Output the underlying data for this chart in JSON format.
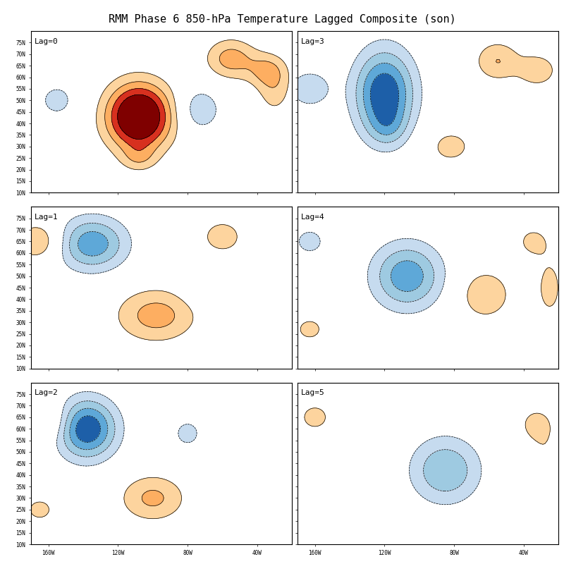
{
  "title": "RMM Phase 6 850-hPa Temperature Lagged Composite (son)",
  "title_fontsize": 11,
  "title_font": "monospace",
  "lag_labels": [
    "Lag=0",
    "Lag=1",
    "Lag=2",
    "Lag=3",
    "Lag=4",
    "Lag=5"
  ],
  "lon_range": [
    -170,
    -20
  ],
  "lat_range": [
    10,
    80
  ],
  "lon_ticks": [
    -160,
    -120,
    -80,
    -40
  ],
  "lat_ticks": [
    10,
    15,
    20,
    25,
    30,
    35,
    40,
    45,
    50,
    55,
    60,
    65,
    70,
    75
  ],
  "background_color": "white",
  "neg_fill_levels": [
    -2.4,
    -1.6,
    -1.2,
    -0.8,
    -0.4
  ],
  "pos_fill_levels": [
    0.4,
    0.8,
    1.2,
    1.6,
    2.4
  ],
  "neg_fill_cols": [
    "#1d5fa8",
    "#5ea8d8",
    "#9ecae1",
    "#c6dbef"
  ],
  "pos_fill_cols": [
    "#fdd49e",
    "#fdae61",
    "#d7301f",
    "#7f0000"
  ],
  "contour_line_levels": [
    -1.6,
    -1.2,
    -0.8,
    -0.4,
    0.4,
    0.8,
    1.2,
    1.6
  ],
  "fig_width": 8.0,
  "fig_height": 8.0,
  "dpi": 100
}
